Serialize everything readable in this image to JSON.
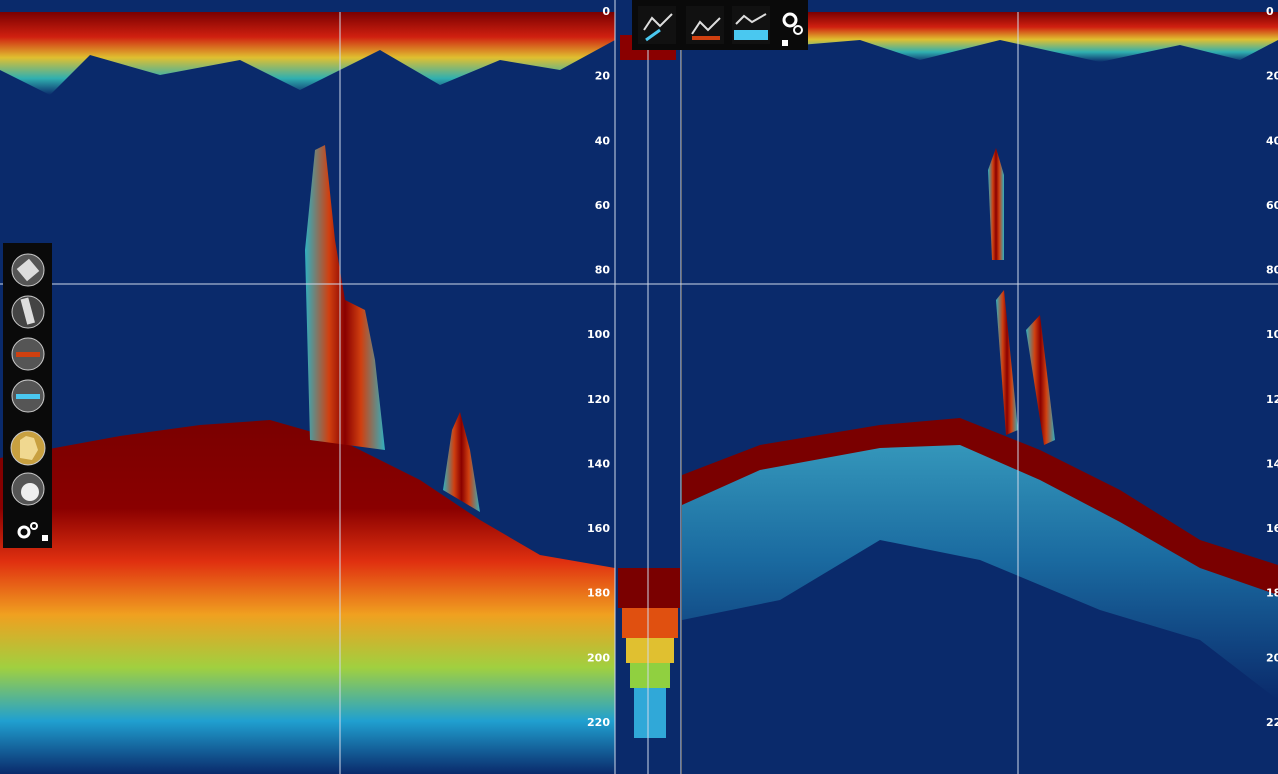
{
  "depth_scale": {
    "labels": [
      0,
      20,
      40,
      60,
      80,
      100,
      120,
      140,
      160,
      180,
      200,
      220
    ]
  }
}
